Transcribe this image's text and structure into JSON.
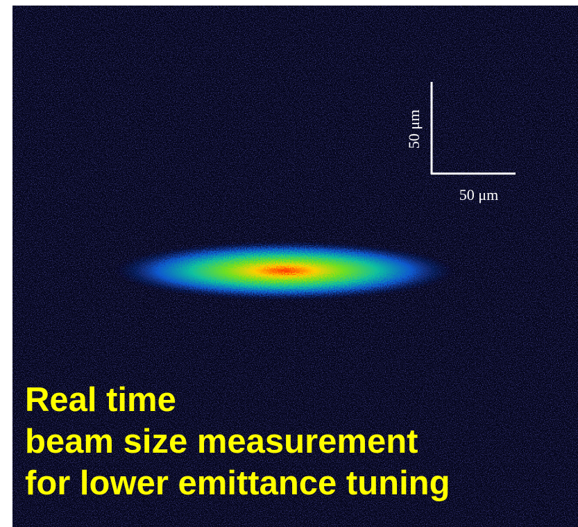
{
  "scale_bar": {
    "vertical_label": "50 μm",
    "horizontal_label": "50 μm"
  },
  "caption": {
    "lines": [
      "Real time",
      "beam size measurement",
      "for lower emittance tuning"
    ]
  }
}
